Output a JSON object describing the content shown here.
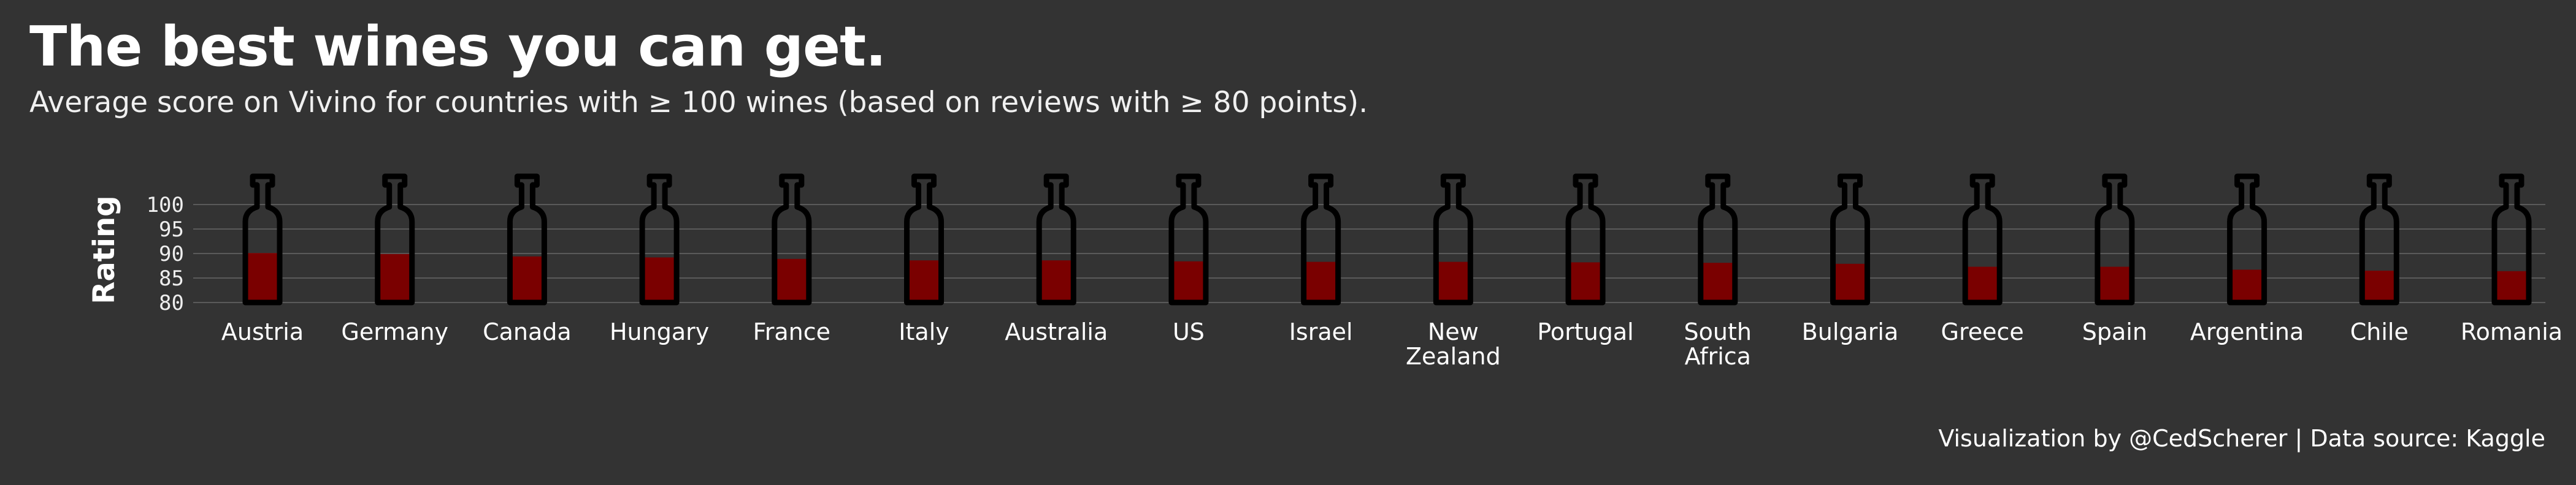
{
  "title": "The best wines you can get.",
  "subtitle": "Average score on Vivino for countries with ≥ 100 wines (based on reviews with ≥ 80 points).",
  "caption": "Visualization by @CedScherer  |  Data source: Kaggle",
  "colors": {
    "background": "#333333",
    "wine_fill": "#7a0000",
    "bottle_outline": "#000000",
    "grid": "#5a5a5a",
    "text": "#ffffff"
  },
  "chart_data": {
    "type": "bar",
    "title": "The best wines you can get.",
    "subtitle": "Average score on Vivino for countries with ≥ 100 wines (based on reviews with ≥ 80 points).",
    "xlabel": "",
    "ylabel": "Rating",
    "ylim": [
      80,
      100
    ],
    "yticks": [
      80,
      85,
      90,
      95,
      100
    ],
    "grid": true,
    "legend": "none",
    "categories": [
      [
        "Austria"
      ],
      [
        "Germany"
      ],
      [
        "Canada"
      ],
      [
        "Hungary"
      ],
      [
        "France"
      ],
      [
        "Italy"
      ],
      [
        "Australia"
      ],
      [
        "US"
      ],
      [
        "Israel"
      ],
      [
        "New",
        "Zealand"
      ],
      [
        "Portugal"
      ],
      [
        "South",
        "Africa"
      ],
      [
        "Bulgaria"
      ],
      [
        "Greece"
      ],
      [
        "Spain"
      ],
      [
        "Argentina"
      ],
      [
        "Chile"
      ],
      [
        "Romania"
      ]
    ],
    "values": [
      90.1,
      89.9,
      89.4,
      89.2,
      88.9,
      88.6,
      88.6,
      88.4,
      88.3,
      88.3,
      88.2,
      88.1,
      87.9,
      87.3,
      87.3,
      86.7,
      86.5,
      86.4
    ]
  }
}
